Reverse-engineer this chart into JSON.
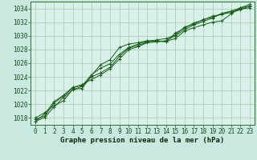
{
  "title": "Graphe pression niveau de la mer (hPa)",
  "bg_color": "#c8e8e0",
  "plot_bg_color": "#d8f0e8",
  "grid_color": "#a0c8b8",
  "line_color": "#1a5c1a",
  "marker_color": "#1a5c1a",
  "spine_color": "#2d6e2d",
  "tick_color": "#1a4a1a",
  "xlabel_color": "#0a2a0a",
  "xlim": [
    -0.5,
    23.5
  ],
  "ylim": [
    1017.0,
    1035.0
  ],
  "yticks": [
    1018,
    1020,
    1022,
    1024,
    1026,
    1028,
    1030,
    1032,
    1034
  ],
  "xticks": [
    0,
    1,
    2,
    3,
    4,
    5,
    6,
    7,
    8,
    9,
    10,
    11,
    12,
    13,
    14,
    15,
    16,
    17,
    18,
    19,
    20,
    21,
    22,
    23
  ],
  "series": [
    [
      1018.0,
      1018.8,
      1019.8,
      1020.5,
      1022.2,
      1022.3,
      1024.2,
      1025.8,
      1026.5,
      1028.3,
      1028.8,
      1029.0,
      1029.3,
      1029.2,
      1029.2,
      1029.6,
      1030.7,
      1031.2,
      1031.6,
      1032.0,
      1032.2,
      1033.2,
      1034.1,
      1034.3
    ],
    [
      1017.8,
      1018.3,
      1020.2,
      1021.2,
      1022.4,
      1022.9,
      1023.6,
      1024.3,
      1025.2,
      1026.6,
      1028.0,
      1028.4,
      1029.0,
      1029.1,
      1029.3,
      1030.0,
      1030.9,
      1031.6,
      1032.1,
      1032.6,
      1033.3,
      1033.6,
      1033.9,
      1034.1
    ],
    [
      1017.5,
      1018.1,
      1019.6,
      1021.0,
      1022.1,
      1022.6,
      1024.0,
      1024.6,
      1025.4,
      1027.0,
      1028.2,
      1028.6,
      1029.1,
      1029.3,
      1029.1,
      1030.4,
      1031.1,
      1031.9,
      1032.3,
      1032.9,
      1033.1,
      1033.6,
      1034.1,
      1034.6
    ],
    [
      1017.5,
      1018.6,
      1020.4,
      1021.3,
      1022.5,
      1022.7,
      1024.3,
      1025.3,
      1025.9,
      1027.3,
      1028.3,
      1028.8,
      1029.2,
      1029.4,
      1029.6,
      1030.1,
      1031.3,
      1031.7,
      1032.4,
      1032.7,
      1033.2,
      1033.4,
      1033.8,
      1034.4
    ]
  ],
  "tick_fontsize": 5.5,
  "xlabel_fontsize": 6.5
}
